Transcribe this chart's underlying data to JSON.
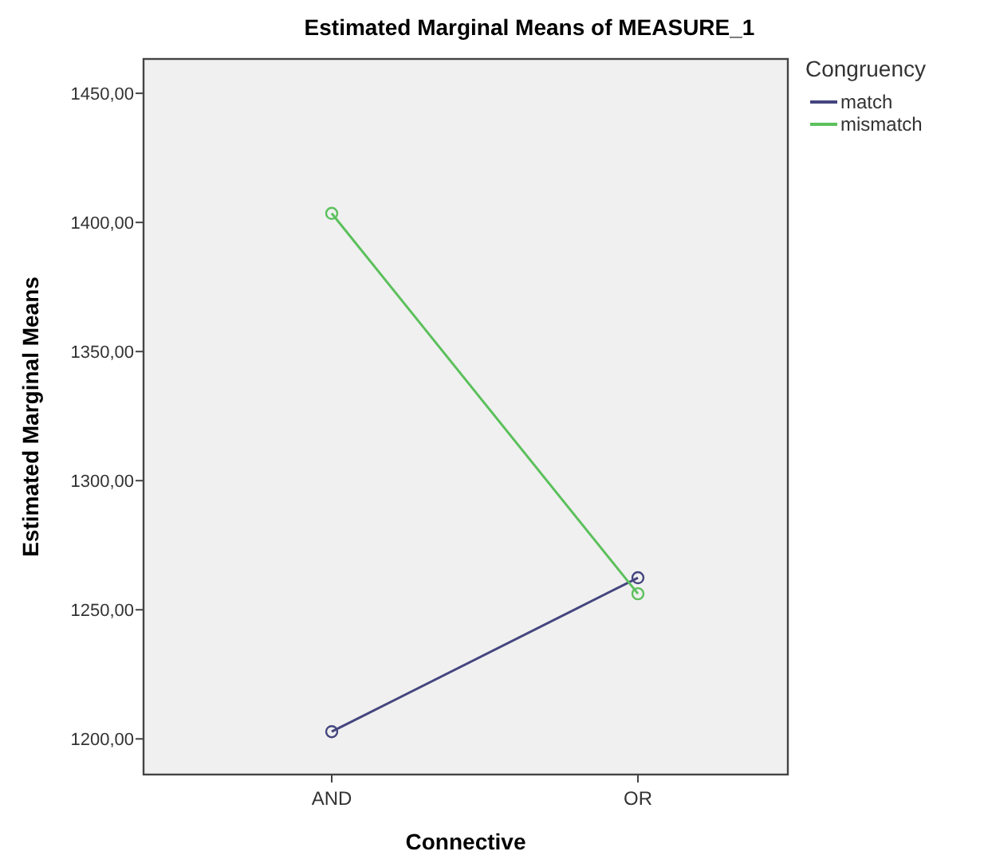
{
  "chart_data": {
    "type": "line",
    "title": "Estimated Marginal Means of MEASURE_1",
    "xlabel": "Connective",
    "ylabel": "Estimated Marginal Means",
    "legend_title": "Congruency",
    "categories": [
      "AND",
      "OR"
    ],
    "series": [
      {
        "name": "match",
        "color": "#45457f",
        "values": [
          1202.8,
          1262.4
        ]
      },
      {
        "name": "mismatch",
        "color": "#5cc05c",
        "values": [
          1403.5,
          1256.2
        ]
      }
    ],
    "ylim": [
      1186.2,
      1463.3
    ],
    "yticks": [
      {
        "value": 1200,
        "label": "1200,00"
      },
      {
        "value": 1250,
        "label": "1250,00"
      },
      {
        "value": 1300,
        "label": "1300,00"
      },
      {
        "value": 1350,
        "label": "1350,00"
      },
      {
        "value": 1400,
        "label": "1400,00"
      },
      {
        "value": 1450,
        "label": "1450,00"
      }
    ],
    "grid": false,
    "legend": "right",
    "marker": "circle",
    "line_style": "solid"
  }
}
